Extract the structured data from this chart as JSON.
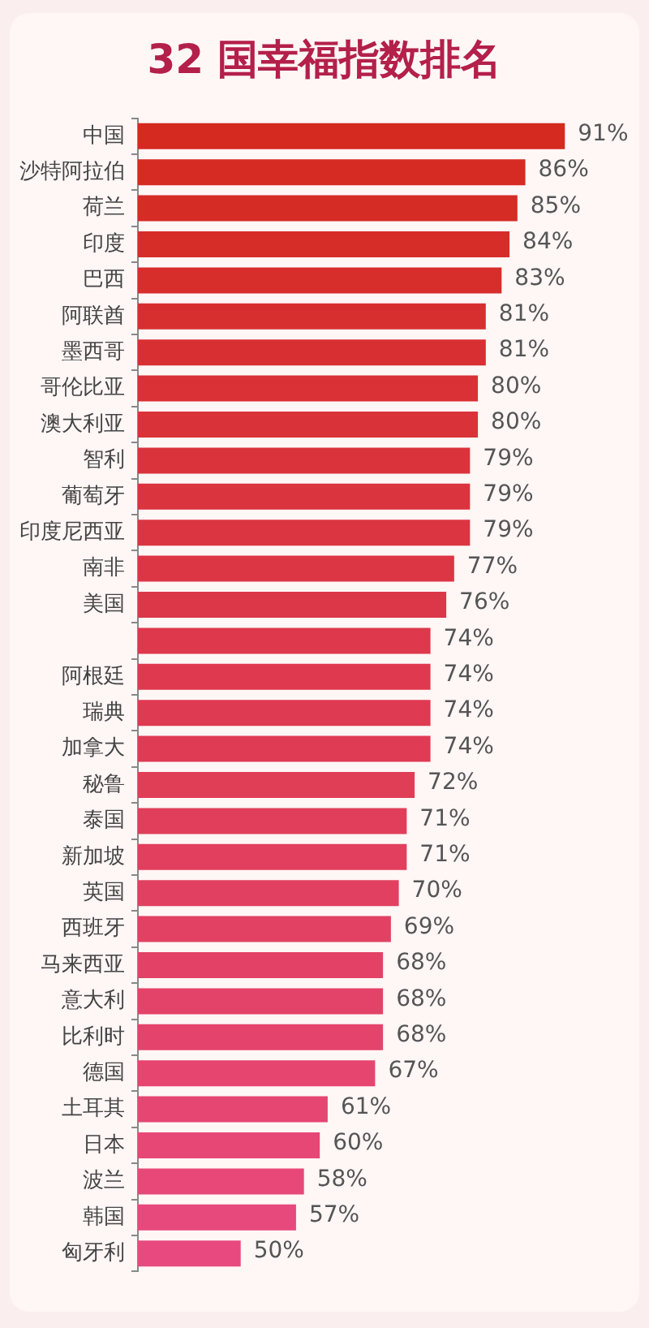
{
  "chart_data": {
    "type": "bar",
    "orientation": "horizontal",
    "title": "32 国幸福指数排名",
    "categories": [
      "中国",
      "沙特阿拉伯",
      "荷兰",
      "印度",
      "巴西",
      "阿联酋",
      "墨西哥",
      "哥伦比亚",
      "澳大利亚",
      "智利",
      "葡萄牙",
      "印度尼西亚",
      "南非",
      "美国",
      null,
      "阿根廷",
      "瑞典",
      "加拿大",
      "秘鲁",
      "泰国",
      "新加坡",
      "英国",
      "西班牙",
      "马来西亚",
      "意大利",
      "比利时",
      "德国",
      "土耳其",
      "日本",
      "波兰",
      "韩国",
      "匈牙利"
    ],
    "values": [
      91,
      86,
      85,
      84,
      83,
      81,
      81,
      80,
      80,
      79,
      79,
      79,
      77,
      76,
      74,
      74,
      74,
      74,
      72,
      71,
      71,
      70,
      69,
      68,
      68,
      68,
      67,
      61,
      60,
      58,
      57,
      50
    ],
    "value_labels": [
      "91%",
      "86%",
      "85%",
      "84%",
      "83%",
      "81%",
      "81%",
      "80%",
      "80%",
      "79%",
      "79%",
      "79%",
      "77%",
      "76%",
      "74%",
      "74%",
      "74%",
      "74%",
      "72%",
      "71%",
      "71%",
      "70%",
      "69%",
      "68%",
      "68%",
      "68%",
      "67%",
      "61%",
      "60%",
      "58%",
      "57%",
      "50%"
    ],
    "colors": [
      "#d42a20",
      "#d52b23",
      "#d52c26",
      "#d62d29",
      "#d72e2c",
      "#d72f2f",
      "#d83032",
      "#d93135",
      "#d93238",
      "#da333b",
      "#da343f",
      "#db3542",
      "#dc3645",
      "#dc3748",
      "#dd384b",
      "#de394e",
      "#de3a51",
      "#df3b54",
      "#e03d57",
      "#e03e5a",
      "#e13f5d",
      "#e24060",
      "#e24163",
      "#e34266",
      "#e44369",
      "#e4446c",
      "#e5456f",
      "#e54672",
      "#e64775",
      "#e74878",
      "#e7497c",
      "#e84a7f"
    ],
    "xlim": [
      37,
      100
    ],
    "legend": false
  }
}
